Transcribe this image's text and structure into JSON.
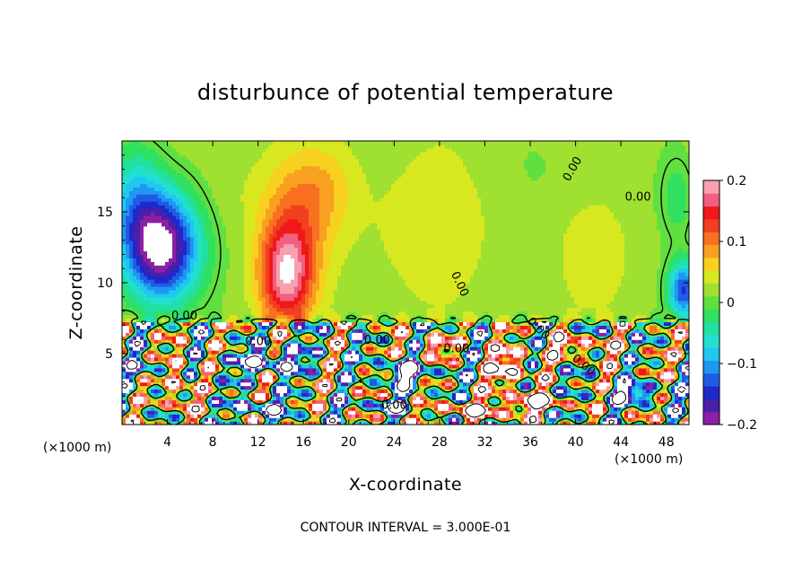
{
  "chart_data": {
    "type": "heatmap",
    "title": "disturbunce of potential temperature",
    "xlabel": "X-coordinate",
    "ylabel": "Z-coordinate",
    "x_unit_left": "(×1000 m)",
    "x_unit_right": "(×1000 m)",
    "xlim": [
      0,
      50
    ],
    "ylim": [
      0,
      20
    ],
    "x_ticks": [
      4,
      8,
      12,
      16,
      20,
      24,
      28,
      32,
      36,
      40,
      44,
      48
    ],
    "x_tick_labels": [
      "4",
      "8",
      "12",
      "16",
      "20",
      "24",
      "28",
      "32",
      "36",
      "40",
      "44",
      "48"
    ],
    "y_ticks": [
      5,
      10,
      15
    ],
    "y_tick_labels": [
      "5",
      "10",
      "15"
    ],
    "colorbar": {
      "range": [
        -0.2,
        0.2
      ],
      "tick_values": [
        0.2,
        0.1,
        0,
        -0.1,
        -0.2
      ],
      "tick_labels": [
        "0.2",
        "0.1",
        "0",
        "−0.1",
        "−0.2"
      ],
      "colors": [
        "#8B1FA6",
        "#4B1FA8",
        "#1F28C8",
        "#1F5CE6",
        "#1F98F0",
        "#20C8F0",
        "#22E0D0",
        "#22E0A0",
        "#30E060",
        "#60E040",
        "#A0E030",
        "#D8E820",
        "#F8D020",
        "#F8A020",
        "#F87020",
        "#F04020",
        "#F01818",
        "#F06080",
        "#F8A0B0"
      ]
    },
    "contour_labels": [
      "0.00",
      "0.00",
      "0.00",
      "0.00",
      "0.00",
      "0.00",
      "0.00",
      "0.00",
      "0.00",
      "0.00"
    ],
    "contour_interval_note": "CONTOUR INTERVAL = 3.000E-01",
    "blobs": [
      {
        "x": 3.5,
        "z": 12.5,
        "sx": 3.2,
        "sz": 3.8,
        "v": -0.24
      },
      {
        "x": 1.2,
        "z": 16,
        "sx": 2.5,
        "sz": 4,
        "v": -0.08
      },
      {
        "x": 14.5,
        "z": 10.5,
        "sx": 2.4,
        "sz": 3.6,
        "v": 0.17
      },
      {
        "x": 15.5,
        "z": 15,
        "sx": 3.5,
        "sz": 4,
        "v": 0.06
      },
      {
        "x": 18,
        "z": 17,
        "sx": 3,
        "sz": 3,
        "v": 0.03
      },
      {
        "x": 27,
        "z": 14,
        "sx": 6,
        "sz": 5,
        "v": 0.025
      },
      {
        "x": 42,
        "z": 12,
        "sx": 3.5,
        "sz": 4,
        "v": 0.02
      },
      {
        "x": 49.5,
        "z": 9.5,
        "sx": 1.3,
        "sz": 2,
        "v": -0.16
      },
      {
        "x": 49,
        "z": 16,
        "sx": 1.5,
        "sz": 3,
        "v": -0.04
      },
      {
        "x": 38,
        "z": 18,
        "sx": 4,
        "sz": 3,
        "v": -0.01
      },
      {
        "x": 9.5,
        "z": 17,
        "sx": 2.5,
        "sz": 3,
        "v": 0.01
      }
    ],
    "lower_bands": [
      {
        "x": 13,
        "z": 4.5,
        "sx": 3,
        "sz": 0.8,
        "v": -0.16
      },
      {
        "x": 12.5,
        "z": 1.2,
        "sx": 2,
        "sz": 0.6,
        "v": -0.14
      },
      {
        "x": 20,
        "z": 3,
        "sx": 2.5,
        "sz": 0.7,
        "v": 0.02
      },
      {
        "x": 25,
        "z": 3.6,
        "sx": 2.2,
        "sz": 0.9,
        "v": -0.17
      },
      {
        "x": 29.5,
        "z": 2.5,
        "sx": 2.6,
        "sz": 0.9,
        "v": 0.01
      },
      {
        "x": 31,
        "z": 1.0,
        "sx": 4,
        "sz": 0.6,
        "v": 0.14
      },
      {
        "x": 24,
        "z": 1.3,
        "sx": 2.5,
        "sz": 0.5,
        "v": -0.12
      },
      {
        "x": 40,
        "z": 5.5,
        "sx": 3,
        "sz": 0.8,
        "v": 0.12
      },
      {
        "x": 42,
        "z": 3,
        "sx": 2.5,
        "sz": 0.7,
        "v": 0.02
      },
      {
        "x": 45,
        "z": 2.2,
        "sx": 2.5,
        "sz": 0.6,
        "v": -0.16
      },
      {
        "x": 5,
        "z": 2.5,
        "sx": 1,
        "sz": 2.5,
        "v": 0.14
      },
      {
        "x": 2,
        "z": 4,
        "sx": 1.3,
        "sz": 0.8,
        "v": -0.08
      },
      {
        "x": 34,
        "z": 4,
        "sx": 1.8,
        "sz": 1.5,
        "v": 0.16
      },
      {
        "x": 27.5,
        "z": 5.5,
        "sx": 2,
        "sz": 0.7,
        "v": 0.1
      },
      {
        "x": 36.5,
        "z": 1.6,
        "sx": 2.5,
        "sz": 0.6,
        "v": 0.18
      },
      {
        "x": 47,
        "z": 4.8,
        "sx": 2.5,
        "sz": 0.8,
        "v": 0.03
      }
    ]
  }
}
